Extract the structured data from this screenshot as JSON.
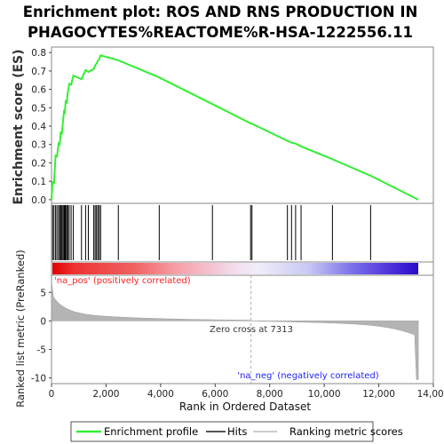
{
  "chart_data": {
    "type": "line",
    "title_line1": "Enrichment plot: ROS AND RNS PRODUCTION IN",
    "title_line2": "PHAGOCYTES%REACTOME%R-HSA-1222556.11",
    "es_ylabel": "Enrichment score (ES)",
    "metric_ylabel_line1": "Ranked list metric (PreRanked)",
    "xlabel": "Rank in Ordered Dataset",
    "x_ticks": [
      "0",
      "2,000",
      "4,000",
      "6,000",
      "8,000",
      "10,000",
      "12,000",
      "14,000"
    ],
    "es_ticks": [
      "0.0",
      "0.1",
      "0.2",
      "0.3",
      "0.4",
      "0.5",
      "0.6",
      "0.7",
      "0.8"
    ],
    "metric_ticks": [
      "5",
      "0",
      "-5",
      "-10"
    ],
    "xlim": [
      0,
      14000
    ],
    "es_ylim": [
      -0.02,
      0.83
    ],
    "metric_ylim": [
      -11,
      8
    ],
    "hits": [
      40,
      90,
      150,
      200,
      260,
      300,
      340,
      380,
      420,
      460,
      490,
      520,
      560,
      600,
      650,
      720,
      800,
      1100,
      1250,
      1350,
      1550,
      1600,
      1650,
      1700,
      1750,
      1800,
      2450,
      3950,
      5900,
      7300,
      7350,
      8650,
      8800,
      8950,
      9150,
      10300,
      11700
    ],
    "es_curve": [
      [
        0,
        0.0
      ],
      [
        40,
        0.095
      ],
      [
        90,
        0.09
      ],
      [
        150,
        0.24
      ],
      [
        200,
        0.235
      ],
      [
        260,
        0.305
      ],
      [
        300,
        0.3
      ],
      [
        340,
        0.365
      ],
      [
        380,
        0.36
      ],
      [
        420,
        0.425
      ],
      [
        460,
        0.48
      ],
      [
        490,
        0.475
      ],
      [
        520,
        0.535
      ],
      [
        560,
        0.53
      ],
      [
        600,
        0.585
      ],
      [
        650,
        0.63
      ],
      [
        720,
        0.625
      ],
      [
        800,
        0.675
      ],
      [
        1100,
        0.655
      ],
      [
        1250,
        0.705
      ],
      [
        1350,
        0.695
      ],
      [
        1550,
        0.71
      ],
      [
        1600,
        0.73
      ],
      [
        1650,
        0.74
      ],
      [
        1700,
        0.755
      ],
      [
        1750,
        0.765
      ],
      [
        1800,
        0.785
      ],
      [
        2450,
        0.758
      ],
      [
        3950,
        0.665
      ],
      [
        5900,
        0.52
      ],
      [
        7300,
        0.415
      ],
      [
        7350,
        0.413
      ],
      [
        8650,
        0.32
      ],
      [
        8800,
        0.31
      ],
      [
        8950,
        0.305
      ],
      [
        9150,
        0.29
      ],
      [
        10300,
        0.22
      ],
      [
        11700,
        0.13
      ],
      [
        13450,
        0.0
      ]
    ],
    "zero_cross_label": "Zero cross at 7313",
    "zero_cross": 7313,
    "pos_label": "'na_pos' (positively correlated)",
    "neg_label": "'na_neg' (negatively correlated)",
    "legend": [
      "Enrichment profile",
      "Hits",
      "Ranking metric scores"
    ],
    "colors": {
      "es_line": "#33ee33",
      "hits": "#000000",
      "metric_fill": "#b4b4b4",
      "pos_text": "#ff2020",
      "neg_text": "#2222ff",
      "zero_line": "#aaaaaa",
      "bar_red": "#e00000",
      "bar_blue": "#2a0acb"
    }
  }
}
